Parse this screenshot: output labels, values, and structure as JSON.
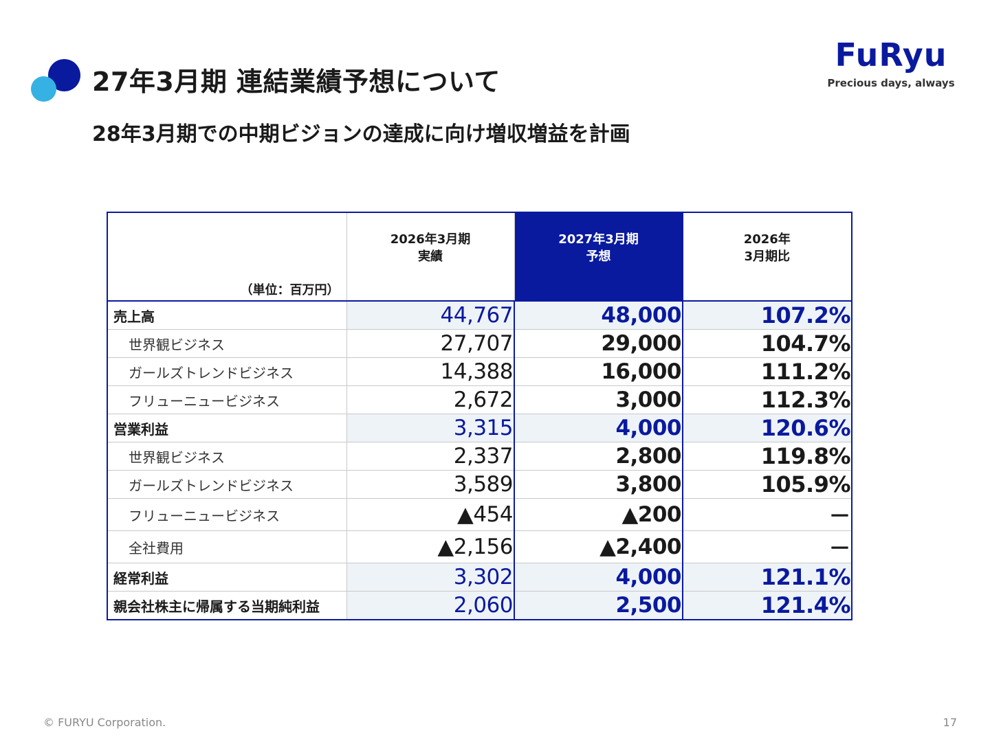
{
  "header": {
    "title": "27年3月期 連結業績予想について",
    "subtitle": "28年3月期での中期ビジョンの達成に向け増収増益を計画"
  },
  "logo": {
    "wordmark": "FuRyu",
    "tagline": "Precious days, always",
    "color": "#0a1a9e"
  },
  "colors": {
    "accent_navy": "#0a1a9e",
    "accent_cyan": "#35b2e3",
    "row_highlight": "#eef3f8"
  },
  "table": {
    "unit_label": "（単位：百万円）",
    "columns": [
      {
        "line1": "2026年3月期",
        "line2": "実績"
      },
      {
        "line1": "2027年3月期",
        "line2": "予想"
      },
      {
        "line1": "2026年",
        "line2": "3月期比"
      }
    ],
    "rows": [
      {
        "label": "売上高",
        "main": true,
        "actual": "44,767",
        "forecast": "48,000",
        "ratio": "107.2%"
      },
      {
        "label": "世界観ビジネス",
        "main": false,
        "actual": "27,707",
        "forecast": "29,000",
        "ratio": "104.7%"
      },
      {
        "label": "ガールズトレンドビジネス",
        "main": false,
        "actual": "14,388",
        "forecast": "16,000",
        "ratio": "111.2%"
      },
      {
        "label": "フリューニュービジネス",
        "main": false,
        "actual": "2,672",
        "forecast": "3,000",
        "ratio": "112.3%"
      },
      {
        "label": "営業利益",
        "main": true,
        "actual": "3,315",
        "forecast": "4,000",
        "ratio": "120.6%"
      },
      {
        "label": "世界観ビジネス",
        "main": false,
        "actual": "2,337",
        "forecast": "2,800",
        "ratio": "119.8%"
      },
      {
        "label": "ガールズトレンドビジネス",
        "main": false,
        "actual": "3,589",
        "forecast": "3,800",
        "ratio": "105.9%"
      },
      {
        "label": "フリューニュービジネス",
        "main": false,
        "actual": "▲454",
        "forecast": "▲200",
        "ratio": "－"
      },
      {
        "label": "全社費用",
        "main": false,
        "actual": "▲2,156",
        "forecast": "▲2,400",
        "ratio": "－"
      },
      {
        "label": "経常利益",
        "main": true,
        "actual": "3,302",
        "forecast": "4,000",
        "ratio": "121.1%"
      },
      {
        "label": "親会社株主に帰属する当期純利益",
        "main": true,
        "actual": "2,060",
        "forecast": "2,500",
        "ratio": "121.4%"
      }
    ]
  },
  "footer": {
    "copyright": "© FURYU Corporation.",
    "page_number": "17"
  }
}
